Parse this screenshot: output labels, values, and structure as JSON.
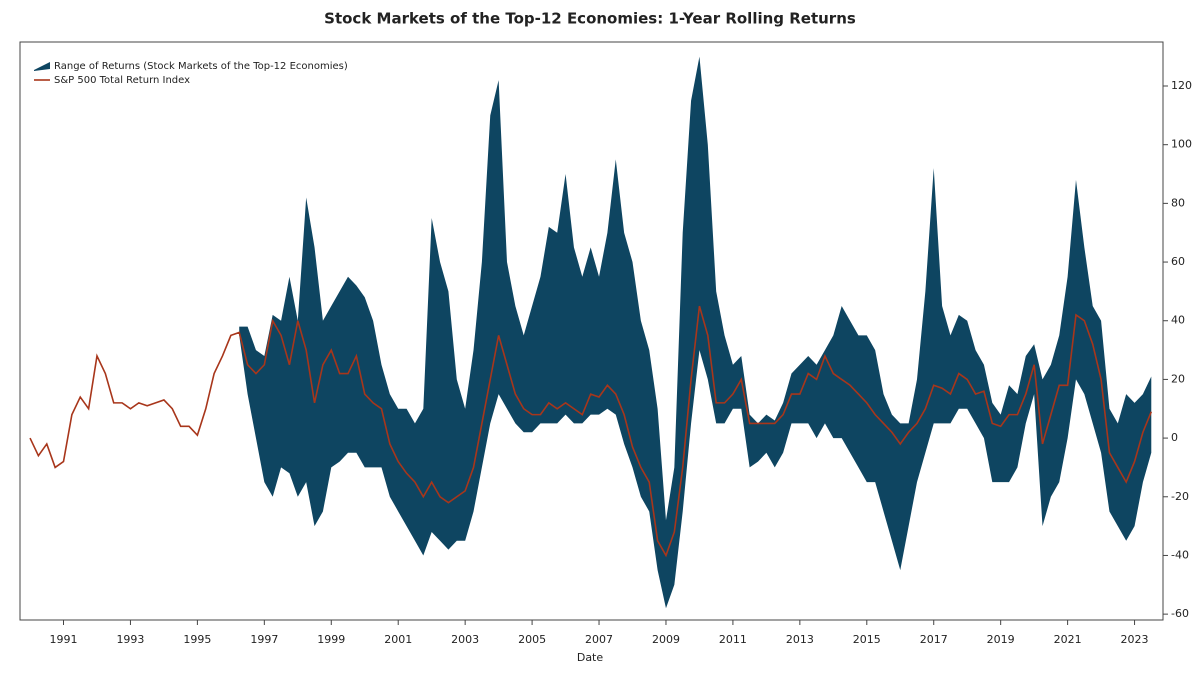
{
  "chart_data": {
    "type": "band-line",
    "title": "Stock Markets of the Top-12 Economies: 1-Year Rolling Returns",
    "x_label": "Date",
    "x": [
      1990,
      1990.25,
      1990.5,
      1990.75,
      1991,
      1991.25,
      1991.5,
      1991.75,
      1992,
      1992.25,
      1992.5,
      1992.75,
      1993,
      1993.25,
      1993.5,
      1993.75,
      1994,
      1994.25,
      1994.5,
      1994.75,
      1995,
      1995.25,
      1995.5,
      1995.75,
      1996,
      1996.25,
      1996.5,
      1996.75,
      1997,
      1997.25,
      1997.5,
      1997.75,
      1998,
      1998.25,
      1998.5,
      1998.75,
      1999,
      1999.25,
      1999.5,
      1999.75,
      2000,
      2000.25,
      2000.5,
      2000.75,
      2001,
      2001.25,
      2001.5,
      2001.75,
      2002,
      2002.25,
      2002.5,
      2002.75,
      2003,
      2003.25,
      2003.5,
      2003.75,
      2004,
      2004.25,
      2004.5,
      2004.75,
      2005,
      2005.25,
      2005.5,
      2005.75,
      2006,
      2006.25,
      2006.5,
      2006.75,
      2007,
      2007.25,
      2007.5,
      2007.75,
      2008,
      2008.25,
      2008.5,
      2008.75,
      2009,
      2009.25,
      2009.5,
      2009.75,
      2010,
      2010.25,
      2010.5,
      2010.75,
      2011,
      2011.25,
      2011.5,
      2011.75,
      2012,
      2012.25,
      2012.5,
      2012.75,
      2013,
      2013.25,
      2013.5,
      2013.75,
      2014,
      2014.25,
      2014.5,
      2014.75,
      2015,
      2015.25,
      2015.5,
      2015.75,
      2016,
      2016.25,
      2016.5,
      2016.75,
      2017,
      2017.25,
      2017.5,
      2017.75,
      2018,
      2018.25,
      2018.5,
      2018.75,
      2019,
      2019.25,
      2019.5,
      2019.75,
      2020,
      2020.25,
      2020.5,
      2020.75,
      2021,
      2021.25,
      2021.5,
      2021.75,
      2022,
      2022.25,
      2022.5,
      2022.75,
      2023,
      2023.25,
      2023.5
    ],
    "series": [
      {
        "name": "Range of Returns (Stock Markets of the Top-12 Economies)",
        "color": "#0e4561",
        "upper": [
          null,
          null,
          null,
          null,
          null,
          null,
          null,
          null,
          null,
          null,
          null,
          null,
          null,
          null,
          null,
          null,
          null,
          null,
          null,
          null,
          null,
          null,
          null,
          null,
          null,
          38,
          38,
          30,
          28,
          42,
          40,
          55,
          40,
          82,
          65,
          40,
          45,
          50,
          55,
          52,
          48,
          40,
          25,
          15,
          10,
          10,
          5,
          10,
          75,
          60,
          50,
          20,
          10,
          30,
          60,
          110,
          122,
          60,
          45,
          35,
          45,
          55,
          72,
          70,
          90,
          65,
          55,
          65,
          55,
          70,
          95,
          70,
          60,
          40,
          30,
          10,
          -28,
          -10,
          70,
          115,
          130,
          100,
          50,
          35,
          25,
          28,
          8,
          5,
          8,
          6,
          12,
          22,
          25,
          28,
          25,
          30,
          35,
          45,
          40,
          35,
          35,
          30,
          15,
          8,
          5,
          5,
          20,
          50,
          92,
          45,
          35,
          42,
          40,
          30,
          25,
          12,
          8,
          18,
          15,
          28,
          32,
          20,
          25,
          35,
          55,
          88,
          65,
          45,
          40,
          10,
          5,
          15,
          12,
          15,
          21
        ],
        "lower": [
          null,
          null,
          null,
          null,
          null,
          null,
          null,
          null,
          null,
          null,
          null,
          null,
          null,
          null,
          null,
          null,
          null,
          null,
          null,
          null,
          null,
          null,
          null,
          null,
          null,
          35,
          15,
          0,
          -15,
          -20,
          -10,
          -12,
          -20,
          -15,
          -30,
          -25,
          -10,
          -8,
          -5,
          -5,
          -10,
          -10,
          -10,
          -20,
          -25,
          -30,
          -35,
          -40,
          -32,
          -35,
          -38,
          -35,
          -35,
          -25,
          -10,
          5,
          15,
          10,
          5,
          2,
          2,
          5,
          5,
          5,
          8,
          5,
          5,
          8,
          8,
          10,
          8,
          -2,
          -10,
          -20,
          -25,
          -45,
          -58,
          -50,
          -25,
          5,
          30,
          20,
          5,
          5,
          10,
          10,
          -10,
          -8,
          -5,
          -10,
          -5,
          5,
          5,
          5,
          0,
          5,
          0,
          0,
          -5,
          -10,
          -15,
          -15,
          -25,
          -35,
          -45,
          -30,
          -15,
          -5,
          5,
          5,
          5,
          10,
          10,
          5,
          0,
          -15,
          -15,
          -15,
          -10,
          5,
          15,
          -30,
          -20,
          -15,
          0,
          20,
          15,
          5,
          -5,
          -25,
          -30,
          -35,
          -30,
          -15,
          -5
        ]
      },
      {
        "name": "S&P 500 Total Return Index",
        "color": "#a8361b",
        "values": [
          0,
          -6,
          -2,
          -10,
          -8,
          8,
          14,
          10,
          28,
          22,
          12,
          12,
          10,
          12,
          11,
          12,
          13,
          10,
          4,
          4,
          1,
          10,
          22,
          28,
          35,
          36,
          25,
          22,
          25,
          40,
          35,
          25,
          40,
          30,
          12,
          25,
          30,
          22,
          22,
          28,
          15,
          12,
          10,
          -2,
          -8,
          -12,
          -15,
          -20,
          -15,
          -20,
          -22,
          -20,
          -18,
          -10,
          5,
          20,
          35,
          25,
          15,
          10,
          8,
          8,
          12,
          10,
          12,
          10,
          8,
          15,
          14,
          18,
          15,
          8,
          -3,
          -10,
          -15,
          -35,
          -40,
          -32,
          -10,
          20,
          45,
          35,
          12,
          12,
          15,
          20,
          5,
          5,
          5,
          5,
          8,
          15,
          15,
          22,
          20,
          28,
          22,
          20,
          18,
          15,
          12,
          8,
          5,
          2,
          -2,
          2,
          5,
          10,
          18,
          17,
          15,
          22,
          20,
          15,
          16,
          5,
          4,
          8,
          8,
          15,
          25,
          -2,
          8,
          18,
          18,
          42,
          40,
          32,
          20,
          -5,
          -10,
          -15,
          -8,
          2,
          9
        ]
      }
    ],
    "xlim": [
      1989.7,
      2023.85
    ],
    "xticks": [
      1991,
      1993,
      1995,
      1997,
      1999,
      2001,
      2003,
      2005,
      2007,
      2009,
      2011,
      2013,
      2015,
      2017,
      2019,
      2021,
      2023
    ],
    "ylim": [
      -62,
      135
    ],
    "yticks": [
      -60,
      -40,
      -20,
      0,
      20,
      40,
      60,
      80,
      100,
      120
    ],
    "legend": "upper-left"
  }
}
